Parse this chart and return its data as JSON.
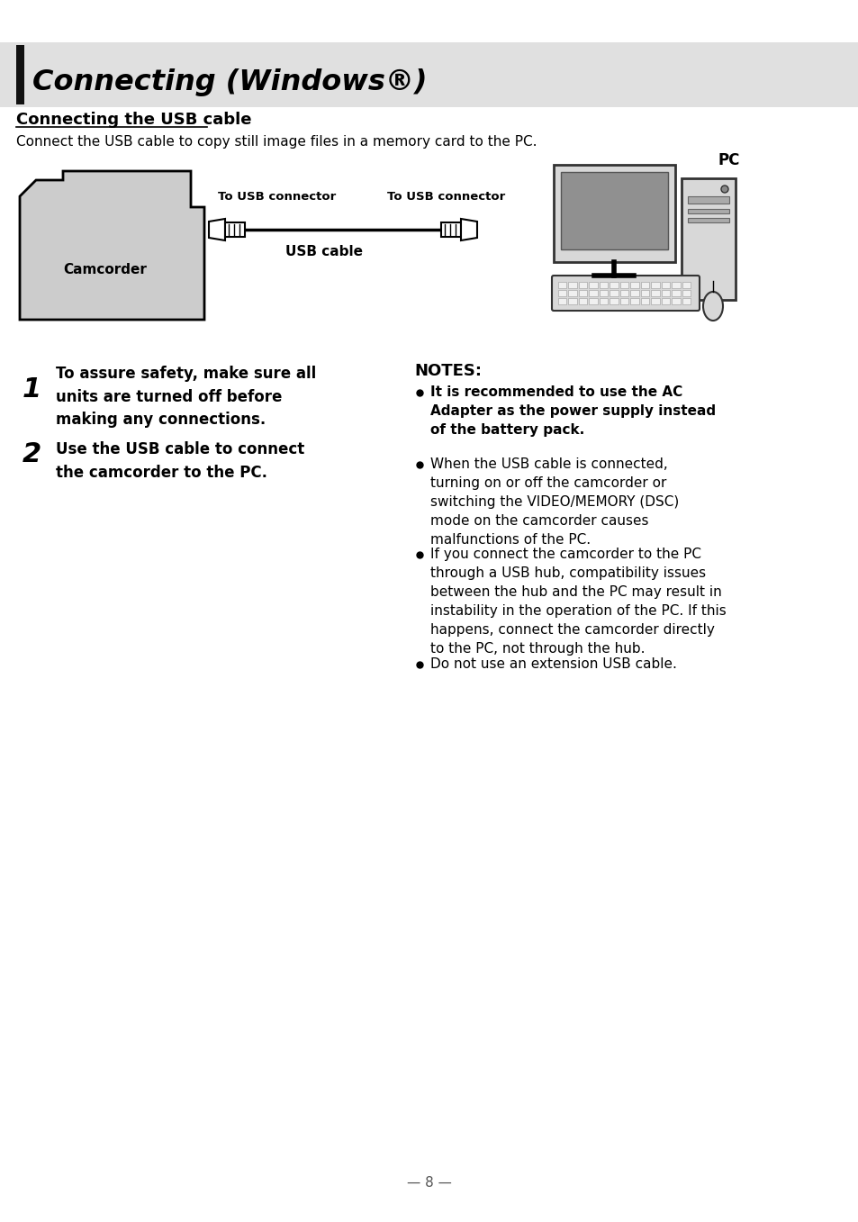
{
  "title": "Connecting (Windows®)",
  "subtitle": "Connecting the USB cable",
  "subtitle2": "Connect the USB cable to copy still image files in a memory card to the PC.",
  "pc_label": "PC",
  "camcorder_label": "Camcorder",
  "to_usb_left": "To USB connector",
  "to_usb_right": "To USB connector",
  "usb_cable_label": "USB cable",
  "step1_num": "1",
  "step1_text": "To assure safety, make sure all\nunits are turned off before\nmaking any connections.",
  "step2_num": "2",
  "step2_text": "Use the USB cable to connect\nthe camcorder to the PC.",
  "notes_title": "NOTES:",
  "note1": "It is recommended to use the AC\nAdapter as the power supply instead\nof the battery pack.",
  "note2": "When the USB cable is connected,\nturning on or off the camcorder or\nswitching the VIDEO/MEMORY (DSC)\nmode on the camcorder causes\nmalfunctions of the PC.",
  "note3": "If you connect the camcorder to the PC\nthrough a USB hub, compatibility issues\nbetween the hub and the PC may result in\ninstability in the operation of the PC. If this\nhappens, connect the camcorder directly\nto the PC, not through the hub.",
  "note4": "Do not use an extension USB cable.",
  "page_num": "— 8 —",
  "header_bg": "#e0e0e0",
  "header_bar_color": "#111111",
  "bg_color": "#ffffff",
  "text_color": "#000000",
  "camcorder_fill": "#cccccc",
  "camcorder_stroke": "#000000"
}
